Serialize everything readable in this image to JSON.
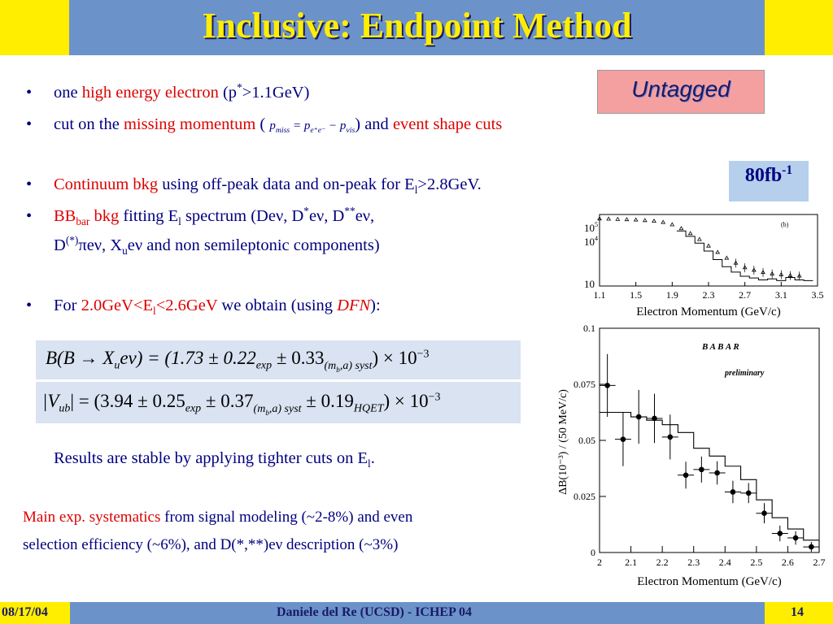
{
  "title": "Inclusive: Endpoint Method",
  "badge_untagged": "Untagged",
  "badge_lumi": "80fb",
  "badge_lumi_sup": "-1",
  "bullets": {
    "b1": {
      "t1": "one ",
      "t2": "high energy electron",
      "t3": " (p",
      "t4": "*",
      "t5": ">1.1GeV)"
    },
    "b2": {
      "t1": "cut on the ",
      "t2": "missing momentum",
      "t3": " (",
      "t4": ") and ",
      "t5": "event shape cuts"
    },
    "b3": {
      "t1": "Continuum bkg",
      "t2": " using off-peak data and on-peak for E",
      "t3": "l",
      "t4": ">2.8GeV."
    },
    "b4": {
      "t1": "BB",
      "t2": "bar",
      "t3": " bkg",
      "t4": " fitting E",
      "t5": "l",
      "t6": " spectrum (Deν, D",
      "t7": "*",
      "t8": "eν, D",
      "t9": "**",
      "t10": "eν,"
    },
    "b4b": {
      "t1": "D",
      "t2": "(*)",
      "t3": "πeν, X",
      "t4": "u",
      "t5": "eν and non semileptonic components)"
    },
    "b5": {
      "t1": "For ",
      "t2": "2.0GeV<E",
      "t3": "l",
      "t4": "<2.6GeV",
      "t5": " we obtain (using ",
      "t6": "DFN",
      "t7": "):"
    }
  },
  "pmiss": {
    "p": "p",
    "miss": "miss",
    "eq": " = ",
    "p2": "p",
    "ee": "e⁺e⁻",
    "minus": " − ",
    "p3": "p",
    "vis": "vis"
  },
  "formula1": {
    "lhs": "B(B → X",
    "u": "u",
    "enu": "eν) = (1.73 ± 0.22",
    "exp": "exp",
    "pm": " ± 0.33",
    "syst": "(m",
    "b": "b",
    "syst2": ",a) syst",
    "tail": ") × 10",
    "pow": "−3"
  },
  "formula2": {
    "lhs": "|V",
    "ub": "ub",
    "eq": "| = (3.94 ± 0.25",
    "exp": "exp",
    "pm": " ± 0.37",
    "syst": "(m",
    "b": "b",
    "syst2": ",a) syst",
    "pm2": " ± 0.19",
    "hqet": "HQET",
    "tail": ") × 10",
    "pow": "−3"
  },
  "results": {
    "t1": "Results are stable by applying tighter cuts on E",
    "t2": "l",
    "t3": "."
  },
  "systematics": {
    "t1": "Main exp. systematics",
    "t2": " from signal modeling (~2-8%) and even",
    "t3": "selection efficiency  (~6%), and D(*,**)eν description (~3%)"
  },
  "plot_top": {
    "panel": "(b)",
    "xlabel": "Electron Momentum (GeV/c)",
    "xticks": [
      "1.1",
      "1.5",
      "1.9",
      "2.3",
      "2.7",
      "3.1",
      "3.5"
    ],
    "ytick_labels": [
      {
        "base": "10",
        "exp": "5"
      },
      {
        "base": "10",
        "exp": "4"
      },
      {
        "base": "10",
        "exp": ""
      }
    ]
  },
  "plot_bottom": {
    "label1": "B A B A R",
    "label2": "preliminary",
    "ylabel": "ΔB(10⁻³) / (50 MeV/c)",
    "xlabel": "Electron Momentum (GeV/c)",
    "xticks": [
      "2",
      "2.1",
      "2.2",
      "2.3",
      "2.4",
      "2.5",
      "2.6",
      "2.7"
    ],
    "yticks": [
      "0",
      "0.025",
      "0.05",
      "0.075",
      "0.1"
    ]
  },
  "chart_data": [
    {
      "type": "scatter",
      "title": "",
      "xlabel": "Electron Momentum (GeV/c)",
      "ylabel": "",
      "xlim": [
        1.1,
        3.5
      ],
      "ylog": true,
      "series": [
        {
          "x": [
            1.1,
            1.2,
            1.3,
            1.4,
            1.5,
            1.6,
            1.7,
            1.8,
            1.9,
            2.0,
            2.1,
            2.2,
            2.3,
            2.4,
            2.5,
            2.6,
            2.7,
            2.8,
            2.9,
            3.0,
            3.1,
            3.2,
            3.3
          ],
          "y": [
            60000,
            58000,
            56000,
            54000,
            52000,
            48000,
            44000,
            38000,
            28000,
            17000,
            9000,
            4200,
            1800,
            800,
            380,
            200,
            110,
            80,
            60,
            50,
            45,
            40,
            38
          ]
        },
        {
          "x": [
            2.0,
            2.1,
            2.2,
            2.3,
            2.4,
            2.5,
            2.6,
            2.7,
            2.8,
            2.9,
            3.0,
            3.1,
            3.2,
            3.3,
            3.4
          ],
          "y": [
            12000,
            6000,
            2500,
            900,
            300,
            120,
            60,
            35,
            28,
            22,
            25,
            20,
            30,
            22,
            20
          ]
        }
      ]
    },
    {
      "type": "scatter",
      "title": "",
      "xlabel": "Electron Momentum (GeV/c)",
      "ylabel": "ΔB(10⁻³) / (50 MeV/c)",
      "xlim": [
        2,
        2.7
      ],
      "ylim": [
        0,
        0.1
      ],
      "series": [
        {
          "type": "points",
          "x": [
            2.025,
            2.075,
            2.125,
            2.175,
            2.225,
            2.275,
            2.325,
            2.375,
            2.425,
            2.475,
            2.525,
            2.575,
            2.625,
            2.675
          ],
          "y": [
            0.0745,
            0.0505,
            0.0605,
            0.0598,
            0.0515,
            0.0345,
            0.037,
            0.0355,
            0.027,
            0.0265,
            0.0175,
            0.0085,
            0.0065,
            0.0025
          ],
          "err": [
            0.014,
            0.012,
            0.012,
            0.011,
            0.01,
            0.006,
            0.0058,
            0.0052,
            0.005,
            0.0045,
            0.0045,
            0.0035,
            0.003,
            0.0022
          ]
        },
        {
          "type": "step",
          "edges": [
            2.0,
            2.05,
            2.1,
            2.15,
            2.2,
            2.25,
            2.3,
            2.35,
            2.4,
            2.45,
            2.5,
            2.55,
            2.6,
            2.65,
            2.7
          ],
          "values": [
            0.0625,
            0.0625,
            0.0605,
            0.059,
            0.057,
            0.0535,
            0.0465,
            0.043,
            0.0385,
            0.0325,
            0.0235,
            0.0155,
            0.0105,
            0.0055
          ]
        }
      ]
    }
  ]
}
